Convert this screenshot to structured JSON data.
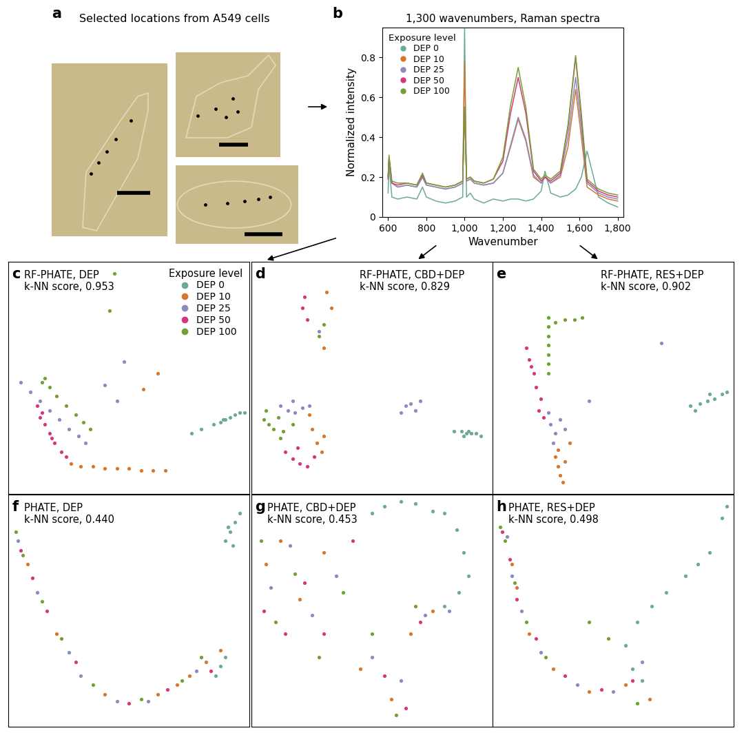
{
  "panel_a": {
    "label": "a",
    "title": "Selected locations from A549 cells"
  },
  "chart_data": [
    {
      "type": "line",
      "panel_label": "b",
      "title": "1,300 wavenumbers, Raman spectra",
      "x_label": "Wavenumber",
      "y_label": "Normalized intensity",
      "legend": "upper left",
      "legend_title": "Exposure level",
      "x": [
        600,
        605,
        620,
        650,
        700,
        750,
        780,
        800,
        850,
        900,
        950,
        990,
        1000,
        1010,
        1030,
        1050,
        1100,
        1150,
        1200,
        1240,
        1280,
        1320,
        1360,
        1400,
        1420,
        1450,
        1500,
        1540,
        1580,
        1610,
        1640,
        1700,
        1750,
        1800
      ],
      "xlim": [
        570,
        1830
      ],
      "xticks": [
        600,
        800,
        {
          "value": 1000,
          "label": "1,000"
        },
        {
          "value": 1200,
          "label": "1,200"
        },
        {
          "value": 1400,
          "label": "1,400"
        },
        {
          "value": 1600,
          "label": "1,600"
        },
        {
          "value": 1800,
          "label": "1,800"
        }
      ],
      "ylim": [
        0,
        0.95
      ],
      "yticks": [
        0,
        0.2,
        0.4,
        0.6,
        0.8
      ],
      "series": [
        {
          "name": "DEP 0",
          "color": "#6aaa96",
          "values": [
            0.12,
            0.26,
            0.1,
            0.09,
            0.1,
            0.09,
            0.15,
            0.1,
            0.08,
            0.07,
            0.08,
            0.1,
            0.95,
            0.1,
            0.12,
            0.09,
            0.07,
            0.09,
            0.08,
            0.09,
            0.09,
            0.08,
            0.09,
            0.13,
            0.23,
            0.12,
            0.1,
            0.11,
            0.14,
            0.2,
            0.33,
            0.1,
            0.07,
            0.05
          ]
        },
        {
          "name": "DEP 10",
          "color": "#d4782f",
          "values": [
            0.2,
            0.3,
            0.17,
            0.15,
            0.16,
            0.15,
            0.2,
            0.16,
            0.15,
            0.14,
            0.15,
            0.17,
            0.78,
            0.18,
            0.19,
            0.17,
            0.16,
            0.17,
            0.22,
            0.35,
            0.49,
            0.38,
            0.2,
            0.17,
            0.2,
            0.17,
            0.2,
            0.35,
            0.64,
            0.4,
            0.15,
            0.11,
            0.09,
            0.08
          ]
        },
        {
          "name": "DEP 25",
          "color": "#8a89c0",
          "values": [
            0.2,
            0.29,
            0.17,
            0.15,
            0.16,
            0.15,
            0.2,
            0.16,
            0.15,
            0.14,
            0.15,
            0.17,
            0.55,
            0.18,
            0.19,
            0.17,
            0.16,
            0.17,
            0.22,
            0.36,
            0.5,
            0.39,
            0.21,
            0.17,
            0.2,
            0.17,
            0.21,
            0.4,
            0.7,
            0.45,
            0.17,
            0.12,
            0.1,
            0.09
          ]
        },
        {
          "name": "DEP 50",
          "color": "#d6367e",
          "values": [
            0.19,
            0.3,
            0.17,
            0.16,
            0.17,
            0.16,
            0.21,
            0.17,
            0.16,
            0.15,
            0.16,
            0.18,
            0.55,
            0.19,
            0.2,
            0.18,
            0.17,
            0.19,
            0.28,
            0.52,
            0.7,
            0.52,
            0.23,
            0.18,
            0.2,
            0.18,
            0.22,
            0.45,
            0.8,
            0.5,
            0.18,
            0.13,
            0.11,
            0.1
          ]
        },
        {
          "name": "DEP 100",
          "color": "#73a032",
          "values": [
            0.2,
            0.31,
            0.18,
            0.17,
            0.17,
            0.16,
            0.22,
            0.17,
            0.16,
            0.15,
            0.16,
            0.18,
            0.55,
            0.19,
            0.2,
            0.18,
            0.17,
            0.19,
            0.3,
            0.56,
            0.75,
            0.55,
            0.24,
            0.19,
            0.21,
            0.19,
            0.23,
            0.46,
            0.81,
            0.52,
            0.19,
            0.14,
            0.12,
            0.11
          ]
        }
      ]
    },
    {
      "type": "scatter",
      "panel_label": "c",
      "title": "RF-PHATE, DEP",
      "subtitle": "k-NN score, 0.953",
      "legend": "upper right",
      "legend_title": "Exposure level",
      "xlim": [
        0,
        100
      ],
      "ylim": [
        0,
        100
      ],
      "tick_labels": false,
      "series": [
        {
          "name": "DEP 0",
          "color": "#6aaa96",
          "x": [
            76,
            80,
            85,
            88,
            90,
            92,
            94,
            96,
            98,
            89
          ],
          "values": [
            26,
            28,
            30,
            31,
            32,
            33,
            34,
            35,
            35,
            32
          ]
        },
        {
          "name": "DEP 10",
          "color": "#d4782f",
          "x": [
            26,
            30,
            35,
            40,
            45,
            50,
            55,
            60,
            65,
            62,
            56
          ],
          "values": [
            13,
            12,
            12,
            11,
            11,
            11,
            10,
            10,
            10,
            52,
            45
          ]
        },
        {
          "name": "DEP 25",
          "color": "#8a89c0",
          "x": [
            5,
            9,
            13,
            17,
            21,
            25,
            29,
            32,
            40,
            48,
            45
          ],
          "values": [
            48,
            44,
            40,
            36,
            32,
            28,
            25,
            22,
            47,
            57,
            40
          ]
        },
        {
          "name": "DEP 50",
          "color": "#d6367e",
          "x": [
            12,
            13,
            15,
            17,
            19,
            22,
            24,
            14,
            18
          ],
          "values": [
            38,
            33,
            30,
            26,
            22,
            18,
            16,
            35,
            24
          ]
        },
        {
          "name": "DEP 100",
          "color": "#73a032",
          "x": [
            14,
            15,
            17,
            20,
            24,
            28,
            31,
            34,
            44,
            42
          ],
          "values": [
            48,
            50,
            46,
            42,
            38,
            34,
            31,
            28,
            95,
            79
          ]
        }
      ]
    },
    {
      "type": "scatter",
      "panel_label": "d",
      "title": "RF-PHATE, CBD+DEP",
      "subtitle": "k-NN score, 0.829",
      "xlim": [
        0,
        100
      ],
      "ylim": [
        0,
        100
      ],
      "tick_labels": false,
      "series": [
        {
          "name": "DEP 0",
          "color": "#6aaa96",
          "x": [
            84,
            87,
            89,
            91,
            93,
            95,
            88,
            90
          ],
          "values": [
            27,
            27,
            26,
            26,
            26,
            25,
            25,
            27
          ]
        },
        {
          "name": "DEP 10",
          "color": "#d4782f",
          "x": [
            25,
            27,
            29,
            24,
            30,
            31,
            33,
            30
          ],
          "values": [
            28,
            22,
            18,
            34,
            25,
            87,
            80,
            63
          ]
        },
        {
          "name": "DEP 25",
          "color": "#8a89c0",
          "x": [
            12,
            15,
            18,
            21,
            24,
            17,
            64,
            66,
            68,
            62,
            70,
            28
          ],
          "values": [
            38,
            36,
            35,
            37,
            38,
            40,
            38,
            39,
            36,
            35,
            40,
            70
          ]
        },
        {
          "name": "DEP 50",
          "color": "#d6367e",
          "x": [
            14,
            17,
            20,
            23,
            26,
            19,
            22,
            21,
            23
          ],
          "values": [
            18,
            15,
            13,
            12,
            16,
            20,
            85,
            80,
            75
          ]
        },
        {
          "name": "DEP 100",
          "color": "#73a032",
          "x": [
            5,
            7,
            9,
            11,
            13,
            6,
            12,
            17,
            30,
            28
          ],
          "values": [
            32,
            30,
            28,
            33,
            27,
            36,
            24,
            30,
            73,
            68
          ]
        }
      ]
    },
    {
      "type": "scatter",
      "panel_label": "e",
      "title": "RF-PHATE, RES+DEP",
      "subtitle": "k-NN score, 0.902",
      "xlim": [
        0,
        100
      ],
      "ylim": [
        0,
        100
      ],
      "tick_labels": false,
      "series": [
        {
          "name": "DEP 0",
          "color": "#6aaa96",
          "x": [
            82,
            86,
            89,
            92,
            95,
            97,
            84,
            90
          ],
          "values": [
            38,
            39,
            40,
            41,
            43,
            44,
            36,
            43
          ]
        },
        {
          "name": "DEP 10",
          "color": "#d4782f",
          "x": [
            26,
            27,
            28,
            29,
            27,
            30,
            32
          ],
          "values": [
            16,
            12,
            8,
            5,
            19,
            14,
            22
          ]
        },
        {
          "name": "DEP 25",
          "color": "#8a89c0",
          "x": [
            23,
            24,
            26,
            25,
            28,
            30,
            40,
            70
          ],
          "values": [
            35,
            30,
            26,
            22,
            32,
            28,
            40,
            65
          ]
        },
        {
          "name": "DEP 50",
          "color": "#d6367e",
          "x": [
            14,
            15,
            17,
            18,
            20,
            19,
            21,
            16
          ],
          "values": [
            63,
            58,
            52,
            46,
            41,
            36,
            33,
            55
          ]
        },
        {
          "name": "DEP 100",
          "color": "#73a032",
          "x": [
            23,
            23,
            23,
            23,
            23,
            23,
            23,
            26,
            30,
            34,
            37
          ],
          "values": [
            76,
            72,
            68,
            64,
            60,
            56,
            52,
            74,
            75,
            75,
            76
          ]
        }
      ]
    },
    {
      "type": "scatter",
      "panel_label": "f",
      "title": "PHATE, DEP",
      "subtitle": "k-NN score, 0.440",
      "xlim": [
        0,
        100
      ],
      "ylim": [
        0,
        100
      ],
      "tick_labels": false,
      "series": [
        {
          "name": "DEP 0",
          "color": "#6aaa96",
          "x": [
            90,
            92,
            94,
            96,
            91,
            93,
            88,
            90,
            86
          ],
          "values": [
            80,
            84,
            88,
            92,
            86,
            78,
            26,
            30,
            22
          ]
        },
        {
          "name": "DEP 10",
          "color": "#d4782f",
          "x": [
            8,
            20,
            40,
            62,
            75,
            82,
            88,
            70
          ],
          "values": [
            70,
            40,
            14,
            14,
            22,
            28,
            33,
            18
          ]
        },
        {
          "name": "DEP 25",
          "color": "#8a89c0",
          "x": [
            4,
            12,
            25,
            45,
            58,
            78,
            30
          ],
          "values": [
            80,
            58,
            32,
            11,
            11,
            24,
            22
          ]
        },
        {
          "name": "DEP 50",
          "color": "#d6367e",
          "x": [
            5,
            10,
            16,
            28,
            50,
            66,
            84
          ],
          "values": [
            76,
            64,
            50,
            28,
            10,
            16,
            24
          ]
        },
        {
          "name": "DEP 100",
          "color": "#73a032",
          "x": [
            3,
            6,
            14,
            22,
            35,
            55,
            72,
            80
          ],
          "values": [
            84,
            74,
            54,
            38,
            18,
            12,
            20,
            30
          ]
        }
      ]
    },
    {
      "type": "scatter",
      "panel_label": "g",
      "title": "PHATE, CBD+DEP",
      "subtitle": "k-NN score, 0.453",
      "xlim": [
        0,
        100
      ],
      "ylim": [
        0,
        100
      ],
      "tick_labels": false,
      "series": [
        {
          "name": "DEP 0",
          "color": "#6aaa96",
          "x": [
            50,
            55,
            62,
            68,
            75,
            80,
            85,
            88,
            90,
            86,
            80
          ],
          "values": [
            92,
            95,
            97,
            96,
            93,
            92,
            85,
            75,
            65,
            58,
            52
          ]
        },
        {
          "name": "DEP 10",
          "color": "#d4782f",
          "x": [
            6,
            12,
            20,
            30,
            45,
            58,
            66,
            75
          ],
          "values": [
            70,
            80,
            55,
            75,
            25,
            12,
            40,
            50
          ]
        },
        {
          "name": "DEP 25",
          "color": "#8a89c0",
          "x": [
            8,
            16,
            25,
            35,
            50,
            62,
            72,
            82
          ],
          "values": [
            60,
            78,
            48,
            65,
            30,
            20,
            48,
            50
          ]
        },
        {
          "name": "DEP 50",
          "color": "#d6367e",
          "x": [
            5,
            14,
            22,
            30,
            42,
            55,
            64,
            70
          ],
          "values": [
            50,
            40,
            62,
            40,
            80,
            22,
            8,
            45
          ]
        },
        {
          "name": "DEP 100",
          "color": "#73a032",
          "x": [
            4,
            10,
            18,
            28,
            38,
            50,
            60,
            68
          ],
          "values": [
            80,
            45,
            66,
            30,
            58,
            40,
            5,
            52
          ]
        }
      ]
    },
    {
      "type": "scatter",
      "panel_label": "h",
      "title": "PHATE, RES+DEP",
      "subtitle": "k-NN score, 0.498",
      "xlim": [
        0,
        100
      ],
      "ylim": [
        0,
        100
      ],
      "tick_labels": false,
      "series": [
        {
          "name": "DEP 0",
          "color": "#6aaa96",
          "x": [
            97,
            95,
            90,
            85,
            80,
            72,
            66,
            60,
            55,
            58,
            62
          ],
          "values": [
            95,
            90,
            75,
            70,
            65,
            58,
            52,
            45,
            35,
            25,
            20
          ]
        },
        {
          "name": "DEP 10",
          "color": "#d4782f",
          "x": [
            10,
            15,
            25,
            40,
            55,
            65,
            8
          ],
          "values": [
            60,
            40,
            25,
            15,
            18,
            12,
            70
          ]
        },
        {
          "name": "DEP 25",
          "color": "#8a89c0",
          "x": [
            6,
            8,
            12,
            20,
            35,
            50,
            62
          ],
          "values": [
            82,
            65,
            50,
            32,
            18,
            15,
            28
          ]
        },
        {
          "name": "DEP 50",
          "color": "#d6367e",
          "x": [
            4,
            7,
            10,
            18,
            30,
            45,
            58
          ],
          "values": [
            84,
            72,
            55,
            38,
            22,
            16,
            20
          ]
        },
        {
          "name": "DEP 100",
          "color": "#73a032",
          "x": [
            3,
            5,
            9,
            14,
            22,
            40,
            48,
            60
          ],
          "values": [
            86,
            80,
            62,
            45,
            30,
            45,
            38,
            10
          ]
        }
      ]
    }
  ]
}
